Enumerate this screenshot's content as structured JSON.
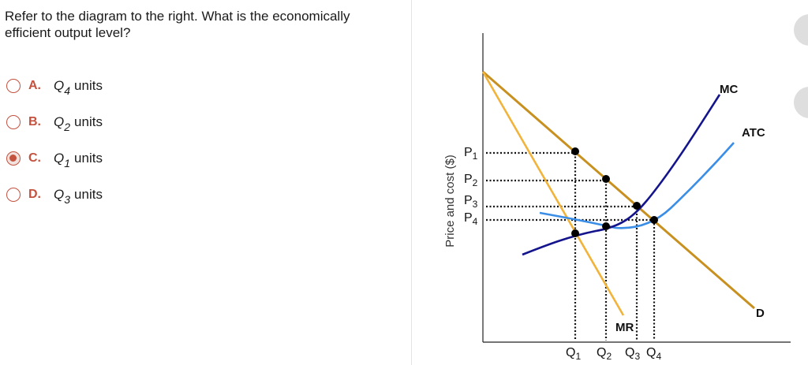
{
  "question": {
    "line1": "Refer to the diagram to the right. What is the economically",
    "line2": "efficient output level?"
  },
  "options": [
    {
      "letter": "A.",
      "symbol": "Q",
      "subscript": "4",
      "units": "units",
      "selected": false
    },
    {
      "letter": "B.",
      "symbol": "Q",
      "subscript": "2",
      "units": "units",
      "selected": false
    },
    {
      "letter": "C.",
      "symbol": "Q",
      "subscript": "1",
      "units": "units",
      "selected": true
    },
    {
      "letter": "D.",
      "symbol": "Q",
      "subscript": "3",
      "units": "units",
      "selected": false
    }
  ],
  "diagram": {
    "ylabel": "Price and cost ($)",
    "price_labels": [
      {
        "main": "P",
        "sub": "1"
      },
      {
        "main": "P",
        "sub": "2"
      },
      {
        "main": "P",
        "sub": "3"
      },
      {
        "main": "P",
        "sub": "4"
      }
    ],
    "quantity_labels": [
      {
        "main": "Q",
        "sub": "1"
      },
      {
        "main": "Q",
        "sub": "2"
      },
      {
        "main": "Q",
        "sub": "3"
      },
      {
        "main": "Q",
        "sub": "4"
      }
    ],
    "curve_labels": {
      "mc": "MC",
      "atc": "ATC",
      "demand": "D",
      "mr": "MR"
    },
    "colors": {
      "demand": "#c7901f",
      "mr": "#f2b33a",
      "mc": "#14148c",
      "atc": "#3a8ee6",
      "points": "#000000",
      "accent": "#c4523f"
    }
  }
}
